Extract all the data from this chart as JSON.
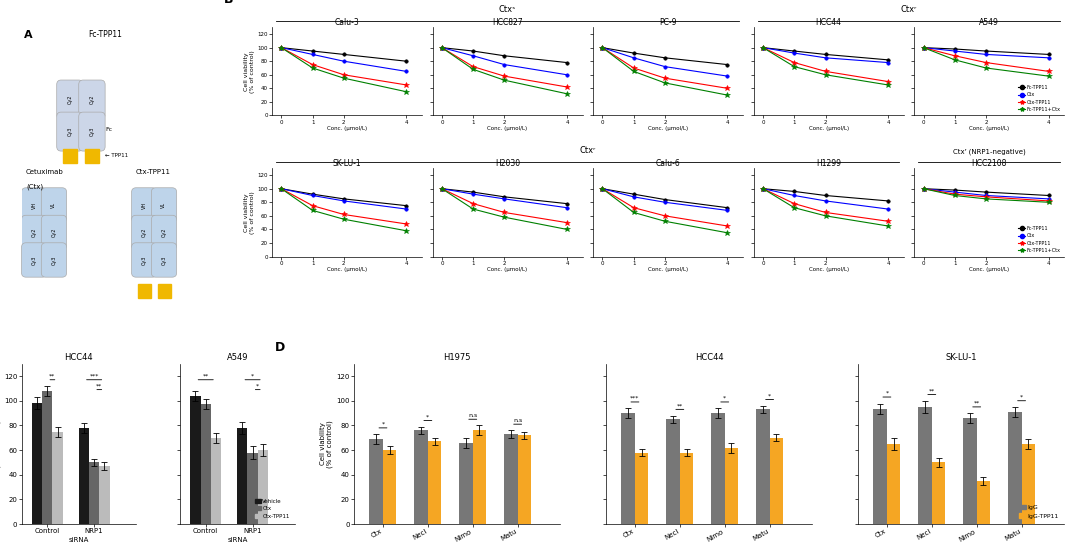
{
  "panel_B_top_titles": [
    "Calu-3",
    "HCC827",
    "PC-9",
    "HCC44",
    "A549"
  ],
  "panel_B_bot_titles": [
    "SK-LU-1",
    "H2030",
    "Calu-6",
    "H1299",
    "HCC2108"
  ],
  "panel_B_top_header_left": "Ctxˢ",
  "panel_B_top_header_right": "Ctxʳ",
  "panel_B_bot_header_left": "Ctxʳ",
  "panel_B_bot_header_right": "Ctxʳ (NRP1-negative)",
  "conc": [
    0,
    1,
    2,
    4
  ],
  "line_colors": [
    "black",
    "blue",
    "red",
    "green"
  ],
  "line_labels": [
    "Fc-TPP11",
    "Ctx",
    "Ctx-TPP11",
    "Fc-TPP11+Ctx"
  ],
  "panel_B_top_data": {
    "Calu-3": {
      "Fc-TPP11": [
        100,
        95,
        90,
        80
      ],
      "Ctx": [
        100,
        90,
        80,
        65
      ],
      "Ctx-TPP11": [
        100,
        75,
        60,
        45
      ],
      "Fc-TPP11+Ctx": [
        100,
        70,
        55,
        35
      ]
    },
    "HCC827": {
      "Fc-TPP11": [
        100,
        95,
        88,
        78
      ],
      "Ctx": [
        100,
        88,
        75,
        60
      ],
      "Ctx-TPP11": [
        100,
        72,
        58,
        42
      ],
      "Fc-TPP11+Ctx": [
        100,
        68,
        52,
        32
      ]
    },
    "PC-9": {
      "Fc-TPP11": [
        100,
        92,
        85,
        75
      ],
      "Ctx": [
        100,
        85,
        72,
        58
      ],
      "Ctx-TPP11": [
        100,
        70,
        55,
        40
      ],
      "Fc-TPP11+Ctx": [
        100,
        65,
        48,
        30
      ]
    },
    "HCC44": {
      "Fc-TPP11": [
        100,
        95,
        90,
        82
      ],
      "Ctx": [
        100,
        92,
        85,
        78
      ],
      "Ctx-TPP11": [
        100,
        78,
        65,
        50
      ],
      "Fc-TPP11+Ctx": [
        100,
        72,
        60,
        45
      ]
    },
    "A549": {
      "Fc-TPP11": [
        100,
        98,
        95,
        90
      ],
      "Ctx": [
        100,
        95,
        90,
        85
      ],
      "Ctx-TPP11": [
        100,
        88,
        78,
        65
      ],
      "Fc-TPP11+Ctx": [
        100,
        82,
        70,
        58
      ]
    }
  },
  "panel_B_bot_data": {
    "SK-LU-1": {
      "Fc-TPP11": [
        100,
        92,
        85,
        75
      ],
      "Ctx": [
        100,
        90,
        82,
        70
      ],
      "Ctx-TPP11": [
        100,
        75,
        62,
        48
      ],
      "Fc-TPP11+Ctx": [
        100,
        68,
        55,
        38
      ]
    },
    "H2030": {
      "Fc-TPP11": [
        100,
        95,
        88,
        78
      ],
      "Ctx": [
        100,
        92,
        85,
        72
      ],
      "Ctx-TPP11": [
        100,
        78,
        65,
        50
      ],
      "Fc-TPP11+Ctx": [
        100,
        70,
        58,
        40
      ]
    },
    "Calu-6": {
      "Fc-TPP11": [
        100,
        92,
        84,
        72
      ],
      "Ctx": [
        100,
        88,
        80,
        68
      ],
      "Ctx-TPP11": [
        100,
        72,
        60,
        45
      ],
      "Fc-TPP11+Ctx": [
        100,
        65,
        52,
        35
      ]
    },
    "H1299": {
      "Fc-TPP11": [
        100,
        96,
        90,
        82
      ],
      "Ctx": [
        100,
        90,
        82,
        70
      ],
      "Ctx-TPP11": [
        100,
        78,
        65,
        52
      ],
      "Fc-TPP11+Ctx": [
        100,
        72,
        60,
        45
      ]
    },
    "HCC2108": {
      "Fc-TPP11": [
        100,
        98,
        95,
        90
      ],
      "Ctx": [
        100,
        95,
        90,
        85
      ],
      "Ctx-TPP11": [
        100,
        92,
        88,
        82
      ],
      "Fc-TPP11+Ctx": [
        100,
        90,
        85,
        80
      ]
    }
  },
  "panel_C_categories": [
    "Control",
    "NRP1"
  ],
  "panel_C_conditions": [
    "Vehicle",
    "Ctx",
    "Ctx-TPP11"
  ],
  "panel_C_colors": [
    "#1a1a1a",
    "#666666",
    "#bbbbbb"
  ],
  "panel_C_HCC44": {
    "Vehicle": [
      98,
      78
    ],
    "Ctx": [
      108,
      50
    ],
    "Ctx-TPP11": [
      75,
      47
    ]
  },
  "panel_C_A549": {
    "Vehicle": [
      104,
      78
    ],
    "Ctx": [
      97,
      58
    ],
    "Ctx-TPP11": [
      70,
      60
    ]
  },
  "panel_C_HCC44_err": {
    "Vehicle": [
      5,
      4
    ],
    "Ctx": [
      4,
      3
    ],
    "Ctx-TPP11": [
      4,
      3
    ]
  },
  "panel_C_A549_err": {
    "Vehicle": [
      4,
      5
    ],
    "Ctx": [
      4,
      5
    ],
    "Ctx-TPP11": [
      4,
      5
    ]
  },
  "panel_D_categories": [
    "Ctx",
    "Necl",
    "Nimo",
    "Matu"
  ],
  "panel_D_conditions": [
    "IgG",
    "IgG-TPP11"
  ],
  "panel_D_colors": [
    "#777777",
    "#f5a623"
  ],
  "panel_D_H1975": {
    "IgG": [
      69,
      76,
      66,
      73
    ],
    "IgG-TPP11": [
      60,
      67,
      76,
      72
    ]
  },
  "panel_D_HCC44": {
    "IgG": [
      90,
      85,
      90,
      93
    ],
    "IgG-TPP11": [
      58,
      58,
      62,
      70
    ]
  },
  "panel_D_SKLU1": {
    "IgG": [
      93,
      95,
      86,
      91
    ],
    "IgG-TPP11": [
      65,
      50,
      35,
      65
    ]
  },
  "panel_D_H1975_err": {
    "IgG": [
      4,
      3,
      4,
      3
    ],
    "IgG-TPP11": [
      3,
      3,
      4,
      3
    ]
  },
  "panel_D_HCC44_err": {
    "IgG": [
      4,
      3,
      4,
      3
    ],
    "IgG-TPP11": [
      3,
      3,
      4,
      3
    ]
  },
  "panel_D_SKLU1_err": {
    "IgG": [
      4,
      5,
      4,
      4
    ],
    "IgG-TPP11": [
      5,
      4,
      3,
      4
    ]
  },
  "panel_D_sig_H1975": [
    "*",
    "*",
    "n.s",
    "n.s"
  ],
  "panel_D_sig_HCC44": [
    "***",
    "**",
    "*",
    "*"
  ],
  "panel_D_sig_SKLU1": [
    "*",
    "**",
    "**",
    "*"
  ],
  "panel_D_cell_labels": [
    "H1975",
    "HCC44",
    "SK-LU-1"
  ]
}
